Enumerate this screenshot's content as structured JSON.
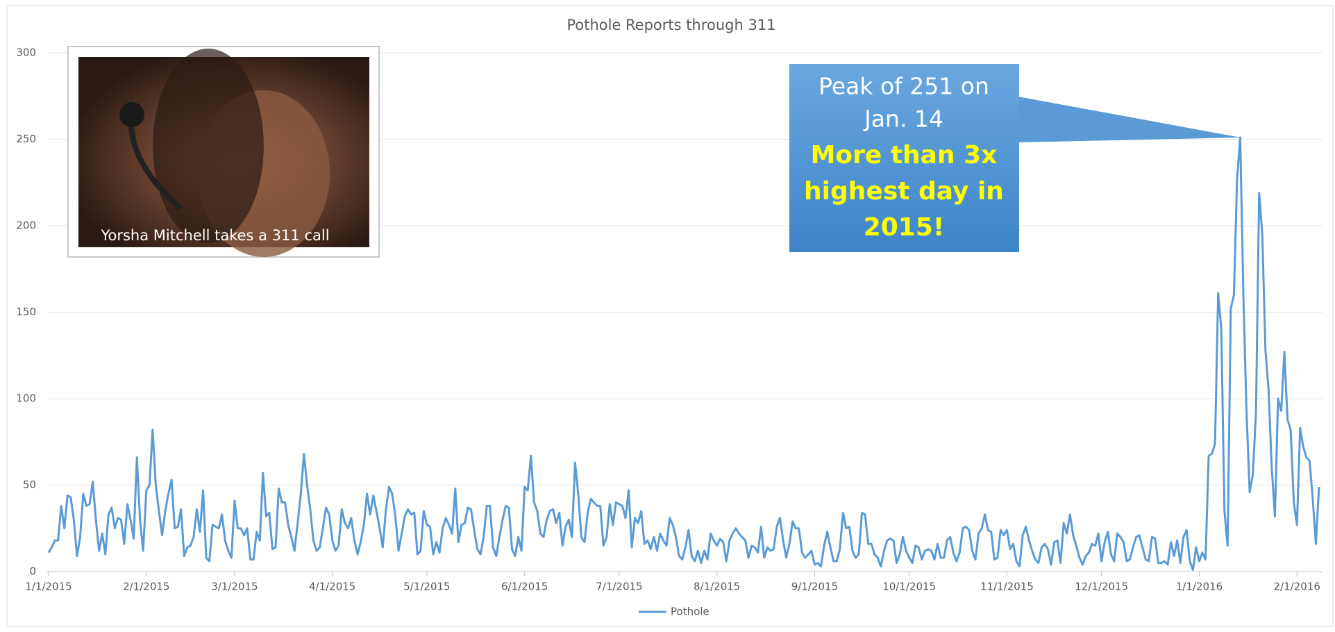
{
  "chart_data": {
    "type": "line",
    "title": "Pothole Reports through 311",
    "image_caption": "Yorsha Mitchell takes a 311 call",
    "annotation_lines": [
      "Peak of 251 on",
      "Jan. 14"
    ],
    "highlight_lines": [
      "More than 3x",
      "highest day in",
      "2015!"
    ],
    "ylim": [
      0,
      300
    ],
    "yticks": [
      0,
      50,
      100,
      150,
      200,
      250,
      300
    ],
    "grid": true,
    "legend": "bottom",
    "xlim": [
      "2015-01-01",
      "2016-02-08"
    ],
    "xticks": [
      {
        "value": "2015-01-01",
        "label": "1/1/2015"
      },
      {
        "value": "2015-02-01",
        "label": "2/1/2015"
      },
      {
        "value": "2015-03-01",
        "label": "3/1/2015"
      },
      {
        "value": "2015-04-01",
        "label": "4/1/2015"
      },
      {
        "value": "2015-05-01",
        "label": "5/1/2015"
      },
      {
        "value": "2015-06-01",
        "label": "6/1/2015"
      },
      {
        "value": "2015-07-01",
        "label": "7/1/2015"
      },
      {
        "value": "2015-08-01",
        "label": "8/1/2015"
      },
      {
        "value": "2015-09-01",
        "label": "9/1/2015"
      },
      {
        "value": "2015-10-01",
        "label": "10/1/2015"
      },
      {
        "value": "2015-11-01",
        "label": "11/1/2015"
      },
      {
        "value": "2015-12-01",
        "label": "12/1/2015"
      },
      {
        "value": "2016-01-01",
        "label": "1/1/2016"
      },
      {
        "value": "2016-02-01",
        "label": "2/1/2016"
      }
    ],
    "x": [
      "2015-01-01",
      "2015-01-02",
      "2015-01-03",
      "2015-01-04",
      "2015-01-05",
      "2015-01-06",
      "2015-01-07",
      "2015-01-08",
      "2015-01-09",
      "2015-01-10",
      "2015-01-11",
      "2015-01-12",
      "2015-01-13",
      "2015-01-14",
      "2015-01-15",
      "2015-01-16",
      "2015-01-17",
      "2015-01-18",
      "2015-01-19",
      "2015-01-20",
      "2015-01-21",
      "2015-01-22",
      "2015-01-23",
      "2015-01-24",
      "2015-01-25",
      "2015-01-26",
      "2015-01-27",
      "2015-01-28",
      "2015-01-29",
      "2015-01-30",
      "2015-01-31",
      "2015-02-01",
      "2015-02-02",
      "2015-02-03",
      "2015-02-04",
      "2015-02-05",
      "2015-02-06",
      "2015-02-07",
      "2015-02-08",
      "2015-02-09",
      "2015-02-10",
      "2015-02-11",
      "2015-02-12",
      "2015-02-13",
      "2015-02-14",
      "2015-02-15",
      "2015-02-16",
      "2015-02-17",
      "2015-02-18",
      "2015-02-19",
      "2015-02-20",
      "2015-02-21",
      "2015-02-22",
      "2015-02-23",
      "2015-02-24",
      "2015-02-25",
      "2015-02-26",
      "2015-02-27",
      "2015-02-28",
      "2015-03-01",
      "2015-03-02",
      "2015-03-03",
      "2015-03-04",
      "2015-03-05",
      "2015-03-06",
      "2015-03-07",
      "2015-03-08",
      "2015-03-09",
      "2015-03-10",
      "2015-03-11",
      "2015-03-12",
      "2015-03-13",
      "2015-03-14",
      "2015-03-15",
      "2015-03-16",
      "2015-03-17",
      "2015-03-18",
      "2015-03-19",
      "2015-03-20",
      "2015-03-21",
      "2015-03-22",
      "2015-03-23",
      "2015-03-24",
      "2015-03-25",
      "2015-03-26",
      "2015-03-27",
      "2015-03-28",
      "2015-03-29",
      "2015-03-30",
      "2015-03-31",
      "2015-04-01",
      "2015-04-02",
      "2015-04-03",
      "2015-04-04",
      "2015-04-05",
      "2015-04-06",
      "2015-04-07",
      "2015-04-08",
      "2015-04-09",
      "2015-04-10",
      "2015-04-11",
      "2015-04-12",
      "2015-04-13",
      "2015-04-14",
      "2015-04-15",
      "2015-04-16",
      "2015-04-17",
      "2015-04-18",
      "2015-04-19",
      "2015-04-20",
      "2015-04-21",
      "2015-04-22",
      "2015-04-23",
      "2015-04-24",
      "2015-04-25",
      "2015-04-26",
      "2015-04-27",
      "2015-04-28",
      "2015-04-29",
      "2015-04-30",
      "2015-05-01",
      "2015-05-02",
      "2015-05-03",
      "2015-05-04",
      "2015-05-05",
      "2015-05-06",
      "2015-05-07",
      "2015-05-08",
      "2015-05-09",
      "2015-05-10",
      "2015-05-11",
      "2015-05-12",
      "2015-05-13",
      "2015-05-14",
      "2015-05-15",
      "2015-05-16",
      "2015-05-17",
      "2015-05-18",
      "2015-05-19",
      "2015-05-20",
      "2015-05-21",
      "2015-05-22",
      "2015-05-23",
      "2015-05-24",
      "2015-05-25",
      "2015-05-26",
      "2015-05-27",
      "2015-05-28",
      "2015-05-29",
      "2015-05-30",
      "2015-05-31",
      "2015-06-01",
      "2015-06-02",
      "2015-06-03",
      "2015-06-04",
      "2015-06-05",
      "2015-06-06",
      "2015-06-07",
      "2015-06-08",
      "2015-06-09",
      "2015-06-10",
      "2015-06-11",
      "2015-06-12",
      "2015-06-13",
      "2015-06-14",
      "2015-06-15",
      "2015-06-16",
      "2015-06-17",
      "2015-06-18",
      "2015-06-19",
      "2015-06-20",
      "2015-06-21",
      "2015-06-22",
      "2015-06-23",
      "2015-06-24",
      "2015-06-25",
      "2015-06-26",
      "2015-06-27",
      "2015-06-28",
      "2015-06-29",
      "2015-06-30",
      "2015-07-01",
      "2015-07-02",
      "2015-07-03",
      "2015-07-04",
      "2015-07-05",
      "2015-07-06",
      "2015-07-07",
      "2015-07-08",
      "2015-07-09",
      "2015-07-10",
      "2015-07-11",
      "2015-07-12",
      "2015-07-13",
      "2015-07-14",
      "2015-07-15",
      "2015-07-16",
      "2015-07-17",
      "2015-07-18",
      "2015-07-19",
      "2015-07-20",
      "2015-07-21",
      "2015-07-22",
      "2015-07-23",
      "2015-07-24",
      "2015-07-25",
      "2015-07-26",
      "2015-07-27",
      "2015-07-28",
      "2015-07-29",
      "2015-07-30",
      "2015-07-31",
      "2015-08-01",
      "2015-08-02",
      "2015-08-03",
      "2015-08-04",
      "2015-08-05",
      "2015-08-06",
      "2015-08-07",
      "2015-08-08",
      "2015-08-09",
      "2015-08-10",
      "2015-08-11",
      "2015-08-12",
      "2015-08-13",
      "2015-08-14",
      "2015-08-15",
      "2015-08-16",
      "2015-08-17",
      "2015-08-18",
      "2015-08-19",
      "2015-08-20",
      "2015-08-21",
      "2015-08-22",
      "2015-08-23",
      "2015-08-24",
      "2015-08-25",
      "2015-08-26",
      "2015-08-27",
      "2015-08-28",
      "2015-08-29",
      "2015-08-30",
      "2015-08-31",
      "2015-09-01",
      "2015-09-02",
      "2015-09-03",
      "2015-09-04",
      "2015-09-05",
      "2015-09-06",
      "2015-09-07",
      "2015-09-08",
      "2015-09-09",
      "2015-09-10",
      "2015-09-11",
      "2015-09-12",
      "2015-09-13",
      "2015-09-14",
      "2015-09-15",
      "2015-09-16",
      "2015-09-17",
      "2015-09-18",
      "2015-09-19",
      "2015-09-20",
      "2015-09-21",
      "2015-09-22",
      "2015-09-23",
      "2015-09-24",
      "2015-09-25",
      "2015-09-26",
      "2015-09-27",
      "2015-09-28",
      "2015-09-29",
      "2015-09-30",
      "2015-10-01",
      "2015-10-02",
      "2015-10-03",
      "2015-10-04",
      "2015-10-05",
      "2015-10-06",
      "2015-10-07",
      "2015-10-08",
      "2015-10-09",
      "2015-10-10",
      "2015-10-11",
      "2015-10-12",
      "2015-10-13",
      "2015-10-14",
      "2015-10-15",
      "2015-10-16",
      "2015-10-17",
      "2015-10-18",
      "2015-10-19",
      "2015-10-20",
      "2015-10-21",
      "2015-10-22",
      "2015-10-23",
      "2015-10-24",
      "2015-10-25",
      "2015-10-26",
      "2015-10-27",
      "2015-10-28",
      "2015-10-29",
      "2015-10-30",
      "2015-10-31",
      "2015-11-01",
      "2015-11-02",
      "2015-11-03",
      "2015-11-04",
      "2015-11-05",
      "2015-11-06",
      "2015-11-07",
      "2015-11-08",
      "2015-11-09",
      "2015-11-10",
      "2015-11-11",
      "2015-11-12",
      "2015-11-13",
      "2015-11-14",
      "2015-11-15",
      "2015-11-16",
      "2015-11-17",
      "2015-11-18",
      "2015-11-19",
      "2015-11-20",
      "2015-11-21",
      "2015-11-22",
      "2015-11-23",
      "2015-11-24",
      "2015-11-25",
      "2015-11-26",
      "2015-11-27",
      "2015-11-28",
      "2015-11-29",
      "2015-11-30",
      "2015-12-01",
      "2015-12-02",
      "2015-12-03",
      "2015-12-04",
      "2015-12-05",
      "2015-12-06",
      "2015-12-07",
      "2015-12-08",
      "2015-12-09",
      "2015-12-10",
      "2015-12-11",
      "2015-12-12",
      "2015-12-13",
      "2015-12-14",
      "2015-12-15",
      "2015-12-16",
      "2015-12-17",
      "2015-12-18",
      "2015-12-19",
      "2015-12-20",
      "2015-12-21",
      "2015-12-22",
      "2015-12-23",
      "2015-12-24",
      "2015-12-25",
      "2015-12-26",
      "2015-12-27",
      "2015-12-28",
      "2015-12-29",
      "2015-12-30",
      "2015-12-31",
      "2016-01-01",
      "2016-01-02",
      "2016-01-03",
      "2016-01-04",
      "2016-01-05",
      "2016-01-06",
      "2016-01-07",
      "2016-01-08",
      "2016-01-09",
      "2016-01-10",
      "2016-01-11",
      "2016-01-12",
      "2016-01-13",
      "2016-01-14",
      "2016-01-15",
      "2016-01-16",
      "2016-01-17",
      "2016-01-18",
      "2016-01-19",
      "2016-01-20",
      "2016-01-21",
      "2016-01-22",
      "2016-01-23",
      "2016-01-24",
      "2016-01-25",
      "2016-01-26",
      "2016-01-27",
      "2016-01-28",
      "2016-01-29",
      "2016-01-30",
      "2016-01-31",
      "2016-02-01",
      "2016-02-02",
      "2016-02-03",
      "2016-02-04",
      "2016-02-05",
      "2016-02-06",
      "2016-02-07",
      "2016-02-08"
    ],
    "series": [
      {
        "name": "Pothole",
        "color": "#5b9bd5",
        "values": [
          11,
          14,
          18,
          18,
          38,
          25,
          44,
          43,
          30,
          9,
          20,
          45,
          38,
          39,
          52,
          30,
          12,
          22,
          10,
          33,
          37,
          25,
          31,
          30,
          16,
          39,
          30,
          19,
          66,
          30,
          12,
          47,
          50,
          82,
          50,
          35,
          21,
          35,
          45,
          53,
          25,
          26,
          36,
          9,
          14,
          15,
          20,
          36,
          23,
          47,
          8,
          6,
          27,
          26,
          25,
          33,
          18,
          12,
          8,
          41,
          25,
          25,
          21,
          25,
          7,
          7,
          23,
          18,
          57,
          32,
          34,
          13,
          14,
          48,
          40,
          40,
          27,
          20,
          12,
          28,
          45,
          68,
          50,
          36,
          18,
          12,
          14,
          25,
          37,
          33,
          18,
          12,
          15,
          36,
          28,
          25,
          31,
          18,
          10,
          17,
          27,
          45,
          33,
          44,
          35,
          25,
          14,
          36,
          49,
          45,
          32,
          12,
          22,
          32,
          36,
          33,
          34,
          10,
          12,
          35,
          27,
          26,
          10,
          17,
          11,
          25,
          31,
          27,
          22,
          48,
          17,
          27,
          28,
          37,
          36,
          24,
          13,
          10,
          20,
          38,
          38,
          14,
          9,
          20,
          30,
          38,
          37,
          13,
          9,
          20,
          12,
          49,
          47,
          67,
          40,
          35,
          22,
          20,
          30,
          35,
          36,
          28,
          34,
          15,
          26,
          30,
          20,
          63,
          45,
          20,
          17,
          34,
          42,
          40,
          38,
          38,
          15,
          20,
          39,
          27,
          40,
          39,
          38,
          31,
          47,
          14,
          31,
          28,
          35,
          16,
          18,
          13,
          20,
          12,
          22,
          18,
          15,
          31,
          27,
          20,
          9,
          7,
          14,
          24,
          9,
          6,
          12,
          5,
          12,
          7,
          22,
          18,
          15,
          19,
          17,
          6,
          18,
          22,
          25,
          22,
          20,
          18,
          8,
          15,
          14,
          11,
          26,
          8,
          14,
          12,
          13,
          26,
          31,
          18,
          8,
          16,
          29,
          25,
          25,
          11,
          8,
          10,
          12,
          4,
          5,
          3,
          15,
          23,
          14,
          6,
          6,
          13,
          34,
          25,
          26,
          12,
          8,
          10,
          34,
          33,
          16,
          16,
          10,
          8,
          3,
          12,
          18,
          19,
          18,
          5,
          10,
          20,
          12,
          8,
          5,
          15,
          14,
          7,
          12,
          13,
          12,
          7,
          16,
          8,
          8,
          18,
          20,
          11,
          6,
          11,
          25,
          26,
          24,
          12,
          7,
          22,
          25,
          33,
          24,
          23,
          7,
          8,
          24,
          21,
          24,
          13,
          16,
          6,
          3,
          21,
          26,
          18,
          12,
          7,
          5,
          14,
          16,
          13,
          4,
          17,
          18,
          5,
          28,
          22,
          33,
          21,
          15,
          8,
          4,
          9,
          11,
          16,
          15,
          22,
          6,
          17,
          23,
          10,
          6,
          22,
          20,
          17,
          6,
          7,
          14,
          20,
          21,
          14,
          7,
          6,
          20,
          19,
          5,
          5,
          6,
          4,
          17,
          9,
          18,
          5,
          20,
          24,
          6,
          1,
          14,
          6,
          11,
          7,
          67,
          68,
          74,
          161,
          140,
          35,
          15,
          152,
          160,
          227,
          251,
          160,
          92,
          46,
          56,
          92,
          219,
          195,
          128,
          105,
          60,
          32,
          100,
          93,
          127,
          88,
          82,
          40,
          27,
          83,
          72,
          66,
          64,
          42,
          16,
          49
        ]
      }
    ]
  }
}
